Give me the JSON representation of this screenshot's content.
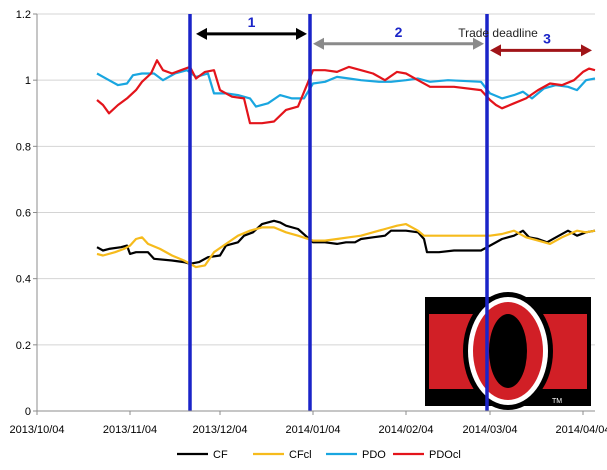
{
  "chart_data": {
    "type": "line",
    "title": "",
    "xlabel": "",
    "ylabel": "",
    "ylim": [
      0,
      1.2
    ],
    "yticks": [
      "0",
      "0.2",
      "0.4",
      "0.6",
      "0.8",
      "1",
      "1.2"
    ],
    "xlim": [
      "2013-10-04",
      "2014-04-08"
    ],
    "xticks": [
      "2013/10/04",
      "2013/11/04",
      "2013/12/04",
      "2014/01/04",
      "2014/02/04",
      "2014/03/04",
      "2014/04/04"
    ],
    "grid": "horizontal",
    "legend_position": "bottom",
    "series": [
      {
        "name": "CF",
        "color": "#000000",
        "points": [
          [
            "2013-10-24",
            0.495
          ],
          [
            "2013-10-26",
            0.485
          ],
          [
            "2013-10-28",
            0.49
          ],
          [
            "2013-11-01",
            0.495
          ],
          [
            "2013-11-03",
            0.5
          ],
          [
            "2013-11-04",
            0.475
          ],
          [
            "2013-11-06",
            0.48
          ],
          [
            "2013-11-10",
            0.48
          ],
          [
            "2013-11-12",
            0.46
          ],
          [
            "2013-11-18",
            0.455
          ],
          [
            "2013-11-22",
            0.45
          ],
          [
            "2013-11-24",
            0.445
          ],
          [
            "2013-11-27",
            0.45
          ],
          [
            "2013-11-30",
            0.465
          ],
          [
            "2013-12-04",
            0.47
          ],
          [
            "2013-12-06",
            0.5
          ],
          [
            "2013-12-10",
            0.51
          ],
          [
            "2013-12-12",
            0.53
          ],
          [
            "2013-12-15",
            0.54
          ],
          [
            "2013-12-18",
            0.565
          ],
          [
            "2013-12-20",
            0.57
          ],
          [
            "2013-12-22",
            0.575
          ],
          [
            "2013-12-24",
            0.57
          ],
          [
            "2013-12-26",
            0.56
          ],
          [
            "2013-12-30",
            0.55
          ],
          [
            "2014-01-04",
            0.51
          ],
          [
            "2014-01-08",
            0.51
          ],
          [
            "2014-01-12",
            0.505
          ],
          [
            "2014-01-15",
            0.51
          ],
          [
            "2014-01-18",
            0.51
          ],
          [
            "2014-01-20",
            0.52
          ],
          [
            "2014-01-24",
            0.525
          ],
          [
            "2014-01-28",
            0.53
          ],
          [
            "2014-01-30",
            0.545
          ],
          [
            "2014-02-04",
            0.545
          ],
          [
            "2014-02-08",
            0.54
          ],
          [
            "2014-02-10",
            0.52
          ],
          [
            "2014-02-11",
            0.48
          ],
          [
            "2014-02-15",
            0.48
          ],
          [
            "2014-02-20",
            0.485
          ],
          [
            "2014-03-01",
            0.485
          ],
          [
            "2014-03-04",
            0.5
          ],
          [
            "2014-03-08",
            0.52
          ],
          [
            "2014-03-10",
            0.525
          ],
          [
            "2014-03-12",
            0.53
          ],
          [
            "2014-03-15",
            0.545
          ],
          [
            "2014-03-17",
            0.525
          ],
          [
            "2014-03-20",
            0.52
          ],
          [
            "2014-03-23",
            0.51
          ],
          [
            "2014-03-26",
            0.525
          ],
          [
            "2014-03-30",
            0.545
          ],
          [
            "2014-04-02",
            0.53
          ],
          [
            "2014-04-05",
            0.54
          ],
          [
            "2014-04-08",
            0.545
          ]
        ]
      },
      {
        "name": "CFcl",
        "color": "#f6bb1c",
        "points": [
          [
            "2013-10-24",
            0.475
          ],
          [
            "2013-10-26",
            0.47
          ],
          [
            "2013-10-30",
            0.48
          ],
          [
            "2013-11-02",
            0.49
          ],
          [
            "2013-11-04",
            0.5
          ],
          [
            "2013-11-06",
            0.52
          ],
          [
            "2013-11-08",
            0.525
          ],
          [
            "2013-11-10",
            0.505
          ],
          [
            "2013-11-14",
            0.49
          ],
          [
            "2013-11-18",
            0.47
          ],
          [
            "2013-11-22",
            0.455
          ],
          [
            "2013-11-26",
            0.435
          ],
          [
            "2013-11-29",
            0.44
          ],
          [
            "2013-12-02",
            0.48
          ],
          [
            "2013-12-06",
            0.505
          ],
          [
            "2013-12-10",
            0.53
          ],
          [
            "2013-12-14",
            0.545
          ],
          [
            "2013-12-18",
            0.555
          ],
          [
            "2013-12-22",
            0.555
          ],
          [
            "2013-12-26",
            0.54
          ],
          [
            "2013-12-30",
            0.53
          ],
          [
            "2014-01-04",
            0.515
          ],
          [
            "2014-01-08",
            0.515
          ],
          [
            "2014-01-12",
            0.52
          ],
          [
            "2014-01-16",
            0.525
          ],
          [
            "2014-01-20",
            0.53
          ],
          [
            "2014-01-24",
            0.54
          ],
          [
            "2014-01-28",
            0.55
          ],
          [
            "2014-02-01",
            0.56
          ],
          [
            "2014-02-04",
            0.565
          ],
          [
            "2014-02-08",
            0.545
          ],
          [
            "2014-02-10",
            0.53
          ],
          [
            "2014-02-14",
            0.53
          ],
          [
            "2014-02-20",
            0.53
          ],
          [
            "2014-03-01",
            0.53
          ],
          [
            "2014-03-04",
            0.53
          ],
          [
            "2014-03-08",
            0.535
          ],
          [
            "2014-03-12",
            0.545
          ],
          [
            "2014-03-16",
            0.525
          ],
          [
            "2014-03-20",
            0.515
          ],
          [
            "2014-03-24",
            0.505
          ],
          [
            "2014-03-28",
            0.525
          ],
          [
            "2014-04-02",
            0.545
          ],
          [
            "2014-04-05",
            0.54
          ],
          [
            "2014-04-08",
            0.545
          ]
        ]
      },
      {
        "name": "PDO",
        "color": "#19a6e0",
        "points": [
          [
            "2013-10-24",
            1.02
          ],
          [
            "2013-10-28",
            1.0
          ],
          [
            "2013-10-31",
            0.985
          ],
          [
            "2013-11-03",
            0.99
          ],
          [
            "2013-11-05",
            1.015
          ],
          [
            "2013-11-08",
            1.02
          ],
          [
            "2013-11-12",
            1.02
          ],
          [
            "2013-11-15",
            1.0
          ],
          [
            "2013-11-19",
            1.02
          ],
          [
            "2013-11-23",
            1.03
          ],
          [
            "2013-11-26",
            1.01
          ],
          [
            "2013-11-30",
            1.02
          ],
          [
            "2013-12-02",
            0.96
          ],
          [
            "2013-12-06",
            0.96
          ],
          [
            "2013-12-10",
            0.955
          ],
          [
            "2013-12-14",
            0.945
          ],
          [
            "2013-12-16",
            0.92
          ],
          [
            "2013-12-20",
            0.93
          ],
          [
            "2013-12-24",
            0.955
          ],
          [
            "2013-12-28",
            0.945
          ],
          [
            "2014-01-01",
            0.945
          ],
          [
            "2014-01-04",
            0.99
          ],
          [
            "2014-01-08",
            0.995
          ],
          [
            "2014-01-12",
            1.01
          ],
          [
            "2014-01-16",
            1.005
          ],
          [
            "2014-01-20",
            1.0
          ],
          [
            "2014-01-26",
            0.995
          ],
          [
            "2014-01-30",
            0.995
          ],
          [
            "2014-02-04",
            1.0
          ],
          [
            "2014-02-08",
            1.005
          ],
          [
            "2014-02-12",
            0.995
          ],
          [
            "2014-02-18",
            1.0
          ],
          [
            "2014-03-01",
            0.995
          ],
          [
            "2014-03-04",
            0.96
          ],
          [
            "2014-03-08",
            0.945
          ],
          [
            "2014-03-12",
            0.955
          ],
          [
            "2014-03-15",
            0.965
          ],
          [
            "2014-03-18",
            0.945
          ],
          [
            "2014-03-22",
            0.975
          ],
          [
            "2014-03-26",
            0.985
          ],
          [
            "2014-03-30",
            0.98
          ],
          [
            "2014-04-02",
            0.97
          ],
          [
            "2014-04-05",
            1.0
          ],
          [
            "2014-04-08",
            1.005
          ]
        ]
      },
      {
        "name": "PDOcl",
        "color": "#e3141b",
        "points": [
          [
            "2013-10-24",
            0.94
          ],
          [
            "2013-10-26",
            0.925
          ],
          [
            "2013-10-28",
            0.9
          ],
          [
            "2013-10-31",
            0.925
          ],
          [
            "2013-11-03",
            0.945
          ],
          [
            "2013-11-06",
            0.97
          ],
          [
            "2013-11-08",
            0.995
          ],
          [
            "2013-11-11",
            1.02
          ],
          [
            "2013-11-13",
            1.06
          ],
          [
            "2013-11-15",
            1.03
          ],
          [
            "2013-11-18",
            1.02
          ],
          [
            "2013-11-21",
            1.03
          ],
          [
            "2013-11-24",
            1.04
          ],
          [
            "2013-11-26",
            1.005
          ],
          [
            "2013-11-29",
            1.025
          ],
          [
            "2013-12-02",
            1.03
          ],
          [
            "2013-12-04",
            0.97
          ],
          [
            "2013-12-08",
            0.95
          ],
          [
            "2013-12-12",
            0.945
          ],
          [
            "2013-12-14",
            0.87
          ],
          [
            "2013-12-18",
            0.87
          ],
          [
            "2013-12-22",
            0.875
          ],
          [
            "2013-12-26",
            0.91
          ],
          [
            "2013-12-30",
            0.92
          ],
          [
            "2014-01-04",
            1.03
          ],
          [
            "2014-01-08",
            1.03
          ],
          [
            "2014-01-12",
            1.025
          ],
          [
            "2014-01-16",
            1.04
          ],
          [
            "2014-01-20",
            1.03
          ],
          [
            "2014-01-24",
            1.02
          ],
          [
            "2014-01-28",
            1.0
          ],
          [
            "2014-02-01",
            1.025
          ],
          [
            "2014-02-04",
            1.02
          ],
          [
            "2014-02-08",
            1.0
          ],
          [
            "2014-02-12",
            0.98
          ],
          [
            "2014-02-20",
            0.98
          ],
          [
            "2014-03-01",
            0.97
          ],
          [
            "2014-03-04",
            0.94
          ],
          [
            "2014-03-06",
            0.925
          ],
          [
            "2014-03-08",
            0.915
          ],
          [
            "2014-03-12",
            0.93
          ],
          [
            "2014-03-16",
            0.945
          ],
          [
            "2014-03-20",
            0.97
          ],
          [
            "2014-03-24",
            0.99
          ],
          [
            "2014-03-28",
            0.985
          ],
          [
            "2014-04-01",
            1.0
          ],
          [
            "2014-04-04",
            1.025
          ],
          [
            "2014-04-06",
            1.035
          ],
          [
            "2014-04-08",
            1.03
          ]
        ]
      }
    ],
    "vertical_markers": [
      {
        "date": "2013-11-24",
        "color": "#1a24c8"
      },
      {
        "date": "2014-01-03",
        "color": "#1a24c8"
      },
      {
        "date": "2014-03-03",
        "color": "#1a24c8"
      }
    ],
    "period_arrows": [
      {
        "label": "1",
        "from": "2013-11-25",
        "to": "2014-01-03",
        "color": "#000000",
        "y": 1.14
      },
      {
        "label": "2",
        "from": "2014-01-03",
        "to": "2014-03-03",
        "color": "#8a8a8a",
        "y": 1.11
      },
      {
        "label": "3",
        "from": "2014-03-03",
        "to": "2014-04-08",
        "color": "#a01418",
        "y": 1.09
      }
    ],
    "annotations": [
      {
        "text": "Trade deadline",
        "date": "2014-03-03"
      }
    ]
  },
  "logo": {
    "name": "Ottawa Senators",
    "mark": "O",
    "trademark": "TM",
    "primary_color": "#d11f26",
    "secondary_color": "#000000",
    "accent_color": "#ffffff"
  }
}
